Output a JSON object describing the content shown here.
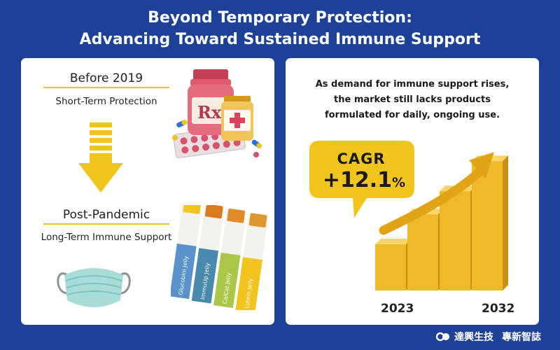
{
  "header": {
    "title_line1": "Beyond Temporary Protection:",
    "title_line2": "Advancing Toward Sustained Immune Support"
  },
  "left_panel": {
    "stage1": {
      "heading": "Before 2019",
      "sub": "Short-Term Protection"
    },
    "stage2": {
      "heading": "Post-Pandemic",
      "sub": "Long-Term Immune Support"
    },
    "stick_labels": [
      "Glucobini Jelly",
      "ImmuUp Jelly",
      "CalCat Jelly",
      "Lutein Jelly"
    ],
    "pill_bottle_label": "Rx",
    "illustrations": [
      "pill-bottle-icon",
      "medicine-jar-icon",
      "pills-icon",
      "face-mask-icon",
      "jelly-sticks-icon"
    ]
  },
  "right_panel": {
    "description_line1": "As demand for immune support rises,",
    "description_line2": "the market still lacks products",
    "description_line3": "formulated for daily, ongoing use.",
    "cagr_label": "CAGR",
    "cagr_value": "+12.1",
    "cagr_unit": "%",
    "year_start": "2023",
    "year_end": "2032"
  },
  "chart_data": {
    "type": "bar",
    "categories": [
      "2023",
      "",
      "",
      "2032"
    ],
    "values": [
      1,
      1.65,
      2.15,
      2.8
    ],
    "title": "",
    "xlabel": "",
    "ylabel": "",
    "trend_arrow": true,
    "annotation": "CAGR +12.1%"
  },
  "footer": {
    "logo_name_zh": "達興生技",
    "logo_tagline_zh": "專新智誌"
  },
  "colors": {
    "background": "#1d4196",
    "panel": "#ffffff",
    "accent_yellow": "#f2c51e",
    "bar_gold": "#f0b92a"
  }
}
